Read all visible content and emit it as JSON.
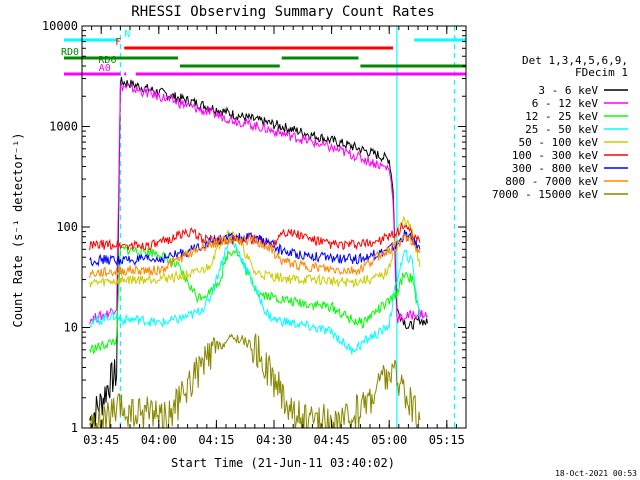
{
  "chart_data": {
    "type": "line",
    "title": "RHESSI Observing Summary Count Rates",
    "xlabel": "Start Time (21-Jun-11 03:40:02)",
    "ylabel": "Count Rate (s⁻¹ detector⁻¹)",
    "yscale": "log",
    "xlim_min": [
      0,
      100
    ],
    "ylim": [
      1,
      10000
    ],
    "x_ticks": [
      {
        "min": 5,
        "label": "03:45"
      },
      {
        "min": 20,
        "label": "04:00"
      },
      {
        "min": 35,
        "label": "04:15"
      },
      {
        "min": 50,
        "label": "04:30"
      },
      {
        "min": 65,
        "label": "04:45"
      },
      {
        "min": 80,
        "label": "05:00"
      },
      {
        "min": 95,
        "label": "05:15"
      }
    ],
    "y_ticks": [
      {
        "v": 1,
        "label": "1"
      },
      {
        "v": 10,
        "label": "10"
      },
      {
        "v": 100,
        "label": "100"
      },
      {
        "v": 1000,
        "label": "1000"
      },
      {
        "v": 10000,
        "label": "10000"
      }
    ],
    "legend": {
      "position": "right",
      "title_lines": [
        "Det 1,3,4,5,6,9,",
        "FDecim 1"
      ]
    },
    "series": [
      {
        "name": "3 - 6 keV",
        "color": "#000000",
        "points": [
          [
            2,
            1.2
          ],
          [
            5,
            1.8
          ],
          [
            7,
            2.8
          ],
          [
            9,
            3.5
          ],
          [
            10,
            2800
          ],
          [
            12,
            2700
          ],
          [
            20,
            2200
          ],
          [
            30,
            1700
          ],
          [
            40,
            1300
          ],
          [
            50,
            1050
          ],
          [
            60,
            820
          ],
          [
            70,
            640
          ],
          [
            77,
            520
          ],
          [
            80,
            470
          ],
          [
            81,
            250
          ],
          [
            82,
            15
          ],
          [
            85,
            10
          ],
          [
            88,
            12
          ],
          [
            90,
            11
          ]
        ]
      },
      {
        "name": "6 - 12 keV",
        "color": "#ff00ff",
        "points": [
          [
            2,
            12
          ],
          [
            5,
            13
          ],
          [
            7,
            14
          ],
          [
            9,
            16
          ],
          [
            10,
            2500
          ],
          [
            12,
            2450
          ],
          [
            20,
            2000
          ],
          [
            30,
            1500
          ],
          [
            40,
            1150
          ],
          [
            50,
            900
          ],
          [
            60,
            700
          ],
          [
            70,
            530
          ],
          [
            77,
            420
          ],
          [
            80,
            380
          ],
          [
            81,
            200
          ],
          [
            82,
            12
          ],
          [
            85,
            13
          ],
          [
            88,
            14
          ],
          [
            90,
            13
          ]
        ]
      },
      {
        "name": "12 - 25 keV",
        "color": "#00ff00",
        "points": [
          [
            2,
            6
          ],
          [
            5,
            6.5
          ],
          [
            7,
            7
          ],
          [
            9,
            7.5
          ],
          [
            10,
            60
          ],
          [
            15,
            58
          ],
          [
            20,
            55
          ],
          [
            25,
            40
          ],
          [
            30,
            20
          ],
          [
            33,
            22
          ],
          [
            36,
            30
          ],
          [
            38,
            55
          ],
          [
            40,
            60
          ],
          [
            43,
            35
          ],
          [
            46,
            22
          ],
          [
            50,
            20
          ],
          [
            55,
            18
          ],
          [
            60,
            17
          ],
          [
            65,
            16
          ],
          [
            70,
            12
          ],
          [
            73,
            11
          ],
          [
            76,
            14
          ],
          [
            80,
            18
          ],
          [
            82,
            22
          ],
          [
            84,
            35
          ],
          [
            86,
            30
          ],
          [
            88,
            12
          ]
        ]
      },
      {
        "name": "25 - 50 keV",
        "color": "#00ffff",
        "points": [
          [
            2,
            11
          ],
          [
            5,
            12
          ],
          [
            7,
            13
          ],
          [
            9,
            13
          ],
          [
            10,
            12
          ],
          [
            15,
            12
          ],
          [
            20,
            11
          ],
          [
            25,
            12
          ],
          [
            30,
            14
          ],
          [
            33,
            18
          ],
          [
            36,
            40
          ],
          [
            38,
            70
          ],
          [
            40,
            65
          ],
          [
            42,
            45
          ],
          [
            45,
            25
          ],
          [
            48,
            14
          ],
          [
            50,
            12
          ],
          [
            55,
            11
          ],
          [
            60,
            10
          ],
          [
            65,
            9
          ],
          [
            70,
            6
          ],
          [
            72,
            6.5
          ],
          [
            75,
            8
          ],
          [
            78,
            9
          ],
          [
            80,
            11
          ],
          [
            82,
            30
          ],
          [
            84,
            55
          ],
          [
            86,
            45
          ],
          [
            88,
            12
          ]
        ]
      },
      {
        "name": "50 - 100 keV",
        "color": "#cccc00",
        "points": [
          [
            2,
            28
          ],
          [
            5,
            28
          ],
          [
            7,
            29
          ],
          [
            9,
            29
          ],
          [
            12,
            30
          ],
          [
            15,
            30
          ],
          [
            20,
            31
          ],
          [
            25,
            32
          ],
          [
            30,
            35
          ],
          [
            33,
            40
          ],
          [
            36,
            70
          ],
          [
            38,
            90
          ],
          [
            40,
            80
          ],
          [
            42,
            60
          ],
          [
            45,
            35
          ],
          [
            50,
            32
          ],
          [
            55,
            30
          ],
          [
            60,
            30
          ],
          [
            65,
            29
          ],
          [
            70,
            28
          ],
          [
            75,
            30
          ],
          [
            78,
            32
          ],
          [
            80,
            38
          ],
          [
            82,
            90
          ],
          [
            84,
            120
          ],
          [
            86,
            90
          ],
          [
            88,
            40
          ]
        ]
      },
      {
        "name": "100 - 300 keV",
        "color": "#ff0000",
        "points": [
          [
            2,
            65
          ],
          [
            5,
            66
          ],
          [
            9,
            67
          ],
          [
            12,
            65
          ],
          [
            18,
            66
          ],
          [
            20,
            67
          ],
          [
            24,
            80
          ],
          [
            28,
            90
          ],
          [
            32,
            75
          ],
          [
            36,
            74
          ],
          [
            40,
            75
          ],
          [
            44,
            75
          ],
          [
            48,
            70
          ],
          [
            50,
            68
          ],
          [
            52,
            92
          ],
          [
            56,
            85
          ],
          [
            60,
            75
          ],
          [
            64,
            68
          ],
          [
            68,
            66
          ],
          [
            72,
            67
          ],
          [
            74,
            68
          ],
          [
            78,
            75
          ],
          [
            82,
            85
          ],
          [
            84,
            110
          ],
          [
            86,
            80
          ],
          [
            88,
            70
          ]
        ]
      },
      {
        "name": "300 - 800 keV",
        "color": "#0000ff",
        "points": [
          [
            2,
            46
          ],
          [
            5,
            47
          ],
          [
            9,
            47
          ],
          [
            12,
            47
          ],
          [
            18,
            47
          ],
          [
            20,
            48
          ],
          [
            24,
            52
          ],
          [
            28,
            58
          ],
          [
            32,
            68
          ],
          [
            36,
            75
          ],
          [
            40,
            78
          ],
          [
            44,
            78
          ],
          [
            48,
            72
          ],
          [
            50,
            65
          ],
          [
            52,
            58
          ],
          [
            56,
            54
          ],
          [
            60,
            52
          ],
          [
            64,
            49
          ],
          [
            68,
            48
          ],
          [
            72,
            48
          ],
          [
            74,
            50
          ],
          [
            78,
            56
          ],
          [
            82,
            66
          ],
          [
            84,
            85
          ],
          [
            86,
            75
          ],
          [
            88,
            60
          ]
        ]
      },
      {
        "name": "800 - 7000 keV",
        "color": "#ff8800",
        "points": [
          [
            2,
            34
          ],
          [
            5,
            35
          ],
          [
            9,
            36
          ],
          [
            12,
            37
          ],
          [
            18,
            37
          ],
          [
            20,
            37
          ],
          [
            24,
            45
          ],
          [
            28,
            55
          ],
          [
            32,
            65
          ],
          [
            36,
            72
          ],
          [
            40,
            75
          ],
          [
            44,
            73
          ],
          [
            48,
            65
          ],
          [
            50,
            55
          ],
          [
            52,
            46
          ],
          [
            56,
            42
          ],
          [
            60,
            40
          ],
          [
            64,
            38
          ],
          [
            68,
            37
          ],
          [
            72,
            37
          ],
          [
            74,
            42
          ],
          [
            78,
            55
          ],
          [
            82,
            65
          ],
          [
            84,
            80
          ],
          [
            86,
            70
          ],
          [
            88,
            55
          ]
        ]
      },
      {
        "name": "7000 - 15000 keV",
        "color": "#888800",
        "points": [
          [
            2,
            1.0
          ],
          [
            6,
            1.2
          ],
          [
            10,
            1.5
          ],
          [
            14,
            1.3
          ],
          [
            18,
            1.6
          ],
          [
            22,
            1.2
          ],
          [
            26,
            2.0
          ],
          [
            28,
            2.8
          ],
          [
            30,
            3.5
          ],
          [
            32,
            4.5
          ],
          [
            34,
            5.5
          ],
          [
            36,
            6.5
          ],
          [
            38,
            7.5
          ],
          [
            40,
            7.8
          ],
          [
            42,
            7.5
          ],
          [
            44,
            6.5
          ],
          [
            46,
            5.5
          ],
          [
            48,
            4.0
          ],
          [
            50,
            3.0
          ],
          [
            52,
            2.2
          ],
          [
            54,
            1.6
          ],
          [
            56,
            1.3
          ],
          [
            60,
            1.1
          ],
          [
            64,
            1.2
          ],
          [
            68,
            1.1
          ],
          [
            72,
            1.5
          ],
          [
            75,
            2.0
          ],
          [
            78,
            3.0
          ],
          [
            80,
            3.5
          ],
          [
            82,
            3.2
          ],
          [
            84,
            2.5
          ],
          [
            86,
            1.5
          ],
          [
            88,
            1.2
          ]
        ]
      }
    ],
    "flags": [
      {
        "label": "N",
        "color": "#00ffff",
        "segments": [
          [
            0,
            9.5
          ],
          [
            86.5,
            100
          ]
        ]
      },
      {
        "label": "F",
        "color": "#ff0000",
        "segments": [
          [
            11,
            81
          ]
        ]
      },
      {
        "label": "RD0",
        "color": "#008800",
        "segments": [
          [
            0,
            25
          ],
          [
            52,
            72
          ]
        ]
      },
      {
        "label": "RD6",
        "color": "#008800",
        "segments": [
          [
            25.5,
            51.5
          ],
          [
            72.5,
            100
          ]
        ]
      },
      {
        "label": "A0",
        "color": "#ff00ff",
        "segments": [
          [
            0,
            10
          ],
          [
            11,
            11.5
          ],
          [
            14,
            100
          ]
        ]
      }
    ],
    "vlines": [
      {
        "min": 10.0,
        "color": "#00ffff",
        "style": "dashed"
      },
      {
        "min": 82.0,
        "color": "#00ffff",
        "style": "solid"
      },
      {
        "min": 97.0,
        "color": "#00ffff",
        "style": "dashed"
      }
    ],
    "timestamp": "18-Oct-2021 00:53"
  }
}
